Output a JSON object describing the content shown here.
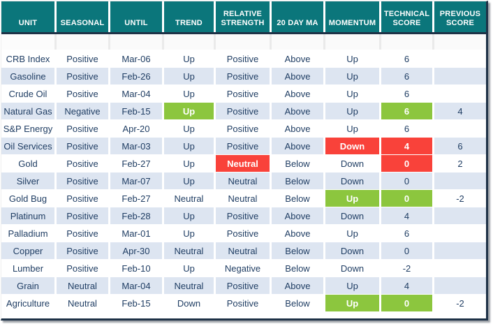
{
  "chart_data": {
    "type": "table",
    "columns": [
      {
        "key": "unit",
        "label": "UNIT"
      },
      {
        "key": "seasonal",
        "label": "SEASONAL"
      },
      {
        "key": "until",
        "label": "UNTIL"
      },
      {
        "key": "trend",
        "label": "TREND"
      },
      {
        "key": "relative_strength",
        "label": "RELATIVE STRENGTH"
      },
      {
        "key": "ma20",
        "label": "20 DAY MA"
      },
      {
        "key": "momentum",
        "label": "MOMENTUM"
      },
      {
        "key": "technical_score",
        "label": "TECHNICAL SCORE"
      },
      {
        "key": "previous_score",
        "label": "PREVIOUS SCORE"
      }
    ],
    "rows": [
      {
        "unit": "CRB Index",
        "seasonal": "Positive",
        "until": "Mar-06",
        "trend": "Up",
        "relative_strength": "Positive",
        "ma20": "Above",
        "momentum": "Up",
        "technical_score": "6",
        "previous_score": "",
        "highlights": {}
      },
      {
        "unit": "Gasoline",
        "seasonal": "Positive",
        "until": "Feb-26",
        "trend": "Up",
        "relative_strength": "Positive",
        "ma20": "Above",
        "momentum": "Up",
        "technical_score": "6",
        "previous_score": "",
        "highlights": {}
      },
      {
        "unit": "Crude Oil",
        "seasonal": "Positive",
        "until": "Mar-04",
        "trend": "Up",
        "relative_strength": "Positive",
        "ma20": "Above",
        "momentum": "Up",
        "technical_score": "6",
        "previous_score": "",
        "highlights": {}
      },
      {
        "unit": "Natural Gas",
        "seasonal": "Negative",
        "until": "Feb-15",
        "trend": "Up",
        "relative_strength": "Positive",
        "ma20": "Above",
        "momentum": "Up",
        "technical_score": "6",
        "previous_score": "4",
        "highlights": {
          "trend": "green",
          "technical_score": "green"
        }
      },
      {
        "unit": "S&P Energy",
        "seasonal": "Positive",
        "until": "Apr-20",
        "trend": "Up",
        "relative_strength": "Positive",
        "ma20": "Above",
        "momentum": "Up",
        "technical_score": "6",
        "previous_score": "",
        "highlights": {}
      },
      {
        "unit": "Oil Services",
        "seasonal": "Positive",
        "until": "Mar-03",
        "trend": "Up",
        "relative_strength": "Positive",
        "ma20": "Above",
        "momentum": "Down",
        "technical_score": "4",
        "previous_score": "6",
        "highlights": {
          "momentum": "red",
          "technical_score": "red"
        }
      },
      {
        "unit": "Gold",
        "seasonal": "Positive",
        "until": "Feb-27",
        "trend": "Up",
        "relative_strength": "Neutral",
        "ma20": "Below",
        "momentum": "Down",
        "technical_score": "0",
        "previous_score": "2",
        "highlights": {
          "relative_strength": "red",
          "technical_score": "red"
        }
      },
      {
        "unit": "Silver",
        "seasonal": "Positive",
        "until": "Mar-07",
        "trend": "Up",
        "relative_strength": "Neutral",
        "ma20": "Below",
        "momentum": "Down",
        "technical_score": "0",
        "previous_score": "",
        "highlights": {}
      },
      {
        "unit": "Gold Bug",
        "seasonal": "Positive",
        "until": "Feb-27",
        "trend": "Neutral",
        "relative_strength": "Neutral",
        "ma20": "Below",
        "momentum": "Up",
        "technical_score": "0",
        "previous_score": "-2",
        "highlights": {
          "momentum": "green",
          "technical_score": "green"
        }
      },
      {
        "unit": "Platinum",
        "seasonal": "Positive",
        "until": "Feb-28",
        "trend": "Up",
        "relative_strength": "Positive",
        "ma20": "Above",
        "momentum": "Down",
        "technical_score": "4",
        "previous_score": "",
        "highlights": {}
      },
      {
        "unit": "Palladium",
        "seasonal": "Positive",
        "until": "Mar-01",
        "trend": "Up",
        "relative_strength": "Positive",
        "ma20": "Above",
        "momentum": "Up",
        "technical_score": "6",
        "previous_score": "",
        "highlights": {}
      },
      {
        "unit": "Copper",
        "seasonal": "Positive",
        "until": "Apr-30",
        "trend": "Neutral",
        "relative_strength": "Neutral",
        "ma20": "Below",
        "momentum": "Down",
        "technical_score": "0",
        "previous_score": "",
        "highlights": {}
      },
      {
        "unit": "Lumber",
        "seasonal": "Positive",
        "until": "Feb-10",
        "trend": "Up",
        "relative_strength": "Negative",
        "ma20": "Below",
        "momentum": "Down",
        "technical_score": "-2",
        "previous_score": "",
        "highlights": {}
      },
      {
        "unit": "Grain",
        "seasonal": "Neutral",
        "until": "Mar-04",
        "trend": "Neutral",
        "relative_strength": "Positive",
        "ma20": "Above",
        "momentum": "Up",
        "technical_score": "4",
        "previous_score": "",
        "highlights": {}
      },
      {
        "unit": "Agriculture",
        "seasonal": "Neutral",
        "until": "Feb-15",
        "trend": "Down",
        "relative_strength": "Positive",
        "ma20": "Below",
        "momentum": "Up",
        "technical_score": "0",
        "previous_score": "-2",
        "highlights": {
          "momentum": "green",
          "technical_score": "green"
        }
      }
    ],
    "layout_hints": {
      "row_striping": "alternating white and light blue starting with white",
      "highlight_text": "white bold on green/red fills",
      "grid": "white column gaps, navy rule under header, navy right and bottom frame borders"
    }
  },
  "colors": {
    "header_bg": "#0B767B",
    "navy": "#1E3247",
    "text": "#1F3D63",
    "alt_row": "#DDE5F1",
    "green": "#8CC63E",
    "red": "#F9423A"
  }
}
